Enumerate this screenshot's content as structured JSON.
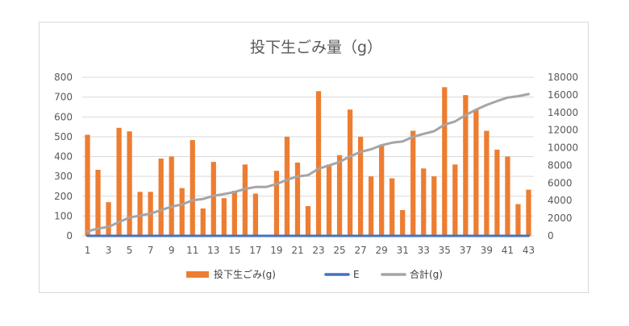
{
  "chart_data": {
    "type": "bar",
    "title": "投下生ごみ量（g）",
    "x": [
      1,
      2,
      3,
      4,
      5,
      6,
      7,
      8,
      9,
      10,
      11,
      12,
      13,
      14,
      15,
      16,
      17,
      18,
      19,
      20,
      21,
      22,
      23,
      24,
      25,
      26,
      27,
      28,
      29,
      30,
      31,
      32,
      33,
      34,
      35,
      36,
      37,
      38,
      39,
      40,
      41,
      42,
      43
    ],
    "x_tick_labels": [
      "1",
      "3",
      "5",
      "7",
      "9",
      "11",
      "13",
      "15",
      "17",
      "19",
      "21",
      "23",
      "25",
      "27",
      "29",
      "31",
      "33",
      "35",
      "37",
      "39",
      "41",
      "43"
    ],
    "ylim": [
      0,
      800
    ],
    "y_ticks": [
      "0",
      "100",
      "200",
      "300",
      "400",
      "500",
      "600",
      "700",
      "800"
    ],
    "y2lim": [
      0,
      18000
    ],
    "y2_ticks": [
      "0",
      "2000",
      "4000",
      "6000",
      "8000",
      "10000",
      "12000",
      "14000",
      "16000",
      "18000"
    ],
    "series": [
      {
        "name": "投下生ごみ(g)",
        "type": "bar",
        "axis": "left",
        "color": "#ED7D31",
        "values": [
          510,
          333,
          170,
          545,
          527,
          222,
          222,
          390,
          400,
          241,
          483,
          138,
          373,
          190,
          227,
          360,
          213,
          0,
          328,
          500,
          370,
          150,
          730,
          360,
          407,
          637,
          500,
          300,
          460,
          290,
          130,
          530,
          340,
          300,
          750,
          360,
          710,
          635,
          530,
          435,
          400,
          160,
          233
        ]
      },
      {
        "name": "E",
        "type": "line",
        "axis": "left",
        "color": "#4472C4",
        "values": [
          0,
          0,
          0,
          0,
          0,
          0,
          0,
          0,
          0,
          0,
          0,
          0,
          0,
          0,
          0,
          0,
          0,
          0,
          0,
          0,
          0,
          0,
          0,
          0,
          0,
          0,
          0,
          0,
          0,
          0,
          0,
          0,
          0,
          0,
          0,
          0,
          0,
          0,
          0,
          0,
          0,
          0,
          0
        ]
      },
      {
        "name": "合計(g)",
        "type": "line",
        "axis": "right",
        "color": "#A5A5A5",
        "values": [
          510,
          843,
          1013,
          1558,
          2085,
          2307,
          2529,
          2919,
          3319,
          3560,
          4043,
          4181,
          4554,
          4744,
          4971,
          5331,
          5544,
          5544,
          5872,
          6372,
          6742,
          6892,
          7622,
          7982,
          8389,
          9026,
          9526,
          9826,
          10286,
          10576,
          10706,
          11236,
          11576,
          11876,
          12626,
          12986,
          13696,
          14331,
          14861,
          15296,
          15696,
          15856,
          16089
        ]
      }
    ],
    "legend_position": "bottom",
    "grid": true
  }
}
